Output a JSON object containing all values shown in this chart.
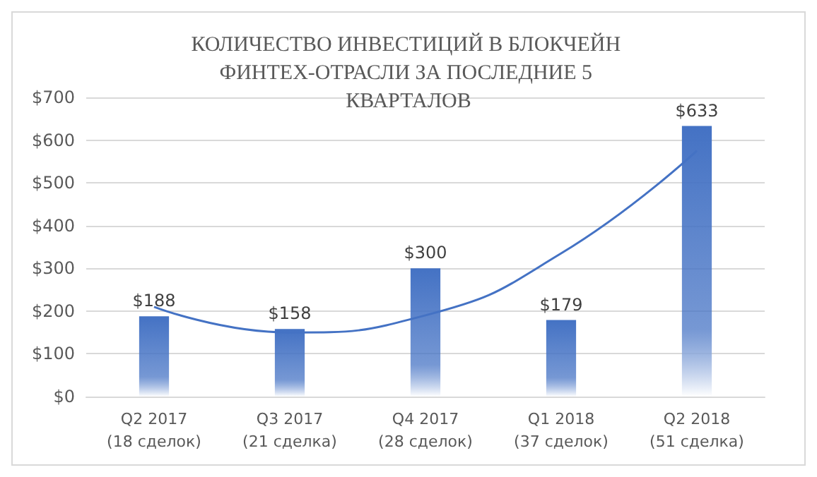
{
  "chart_data": {
    "type": "bar",
    "title": "КОЛИЧЕСТВО ИНВЕСТИЦИЙ В БЛОКЧЕЙН ФИНТЕХ-ОТРАСЛИ ЗА ПОСЛЕДНИЕ 5 КВАРТАЛОВ",
    "categories": [
      "Q2 2017\n(18 сделок)",
      "Q3 2017\n(21 сделка)",
      "Q4 2017\n(28 сделок)",
      "Q1 2018\n(37 сделок)",
      "Q2 2018\n(51 сделка)"
    ],
    "series": [
      {
        "color": "#4472c4",
        "values": [
          188,
          158,
          300,
          179,
          633
        ],
        "value_labels": [
          "$188",
          "$158",
          "$300",
          "$179",
          "$633"
        ]
      },
      {
        "type": "line",
        "color": "#4472c4",
        "x": [
          "Q2 2017\n(18 сделок)",
          "Q3 2017\n(21 сделка)",
          "Q4 2017\n(28 сделок)",
          "Q1 2018\n(37 сделок)",
          "Q2 2018\n(51 сделка)"
        ],
        "values": [
          210,
          150,
          190,
          335,
          575
        ]
      }
    ],
    "ylim": [
      0,
      700
    ],
    "yticks": [
      {
        "value": 0,
        "label": "$0"
      },
      {
        "value": 100,
        "label": "$100"
      },
      {
        "value": 200,
        "label": "$200"
      },
      {
        "value": 300,
        "label": "$300"
      },
      {
        "value": 400,
        "label": "$400"
      },
      {
        "value": 500,
        "label": "$500"
      },
      {
        "value": 600,
        "label": "$600"
      },
      {
        "value": 700,
        "label": "$700"
      }
    ],
    "grid": "y",
    "marker": "none"
  }
}
